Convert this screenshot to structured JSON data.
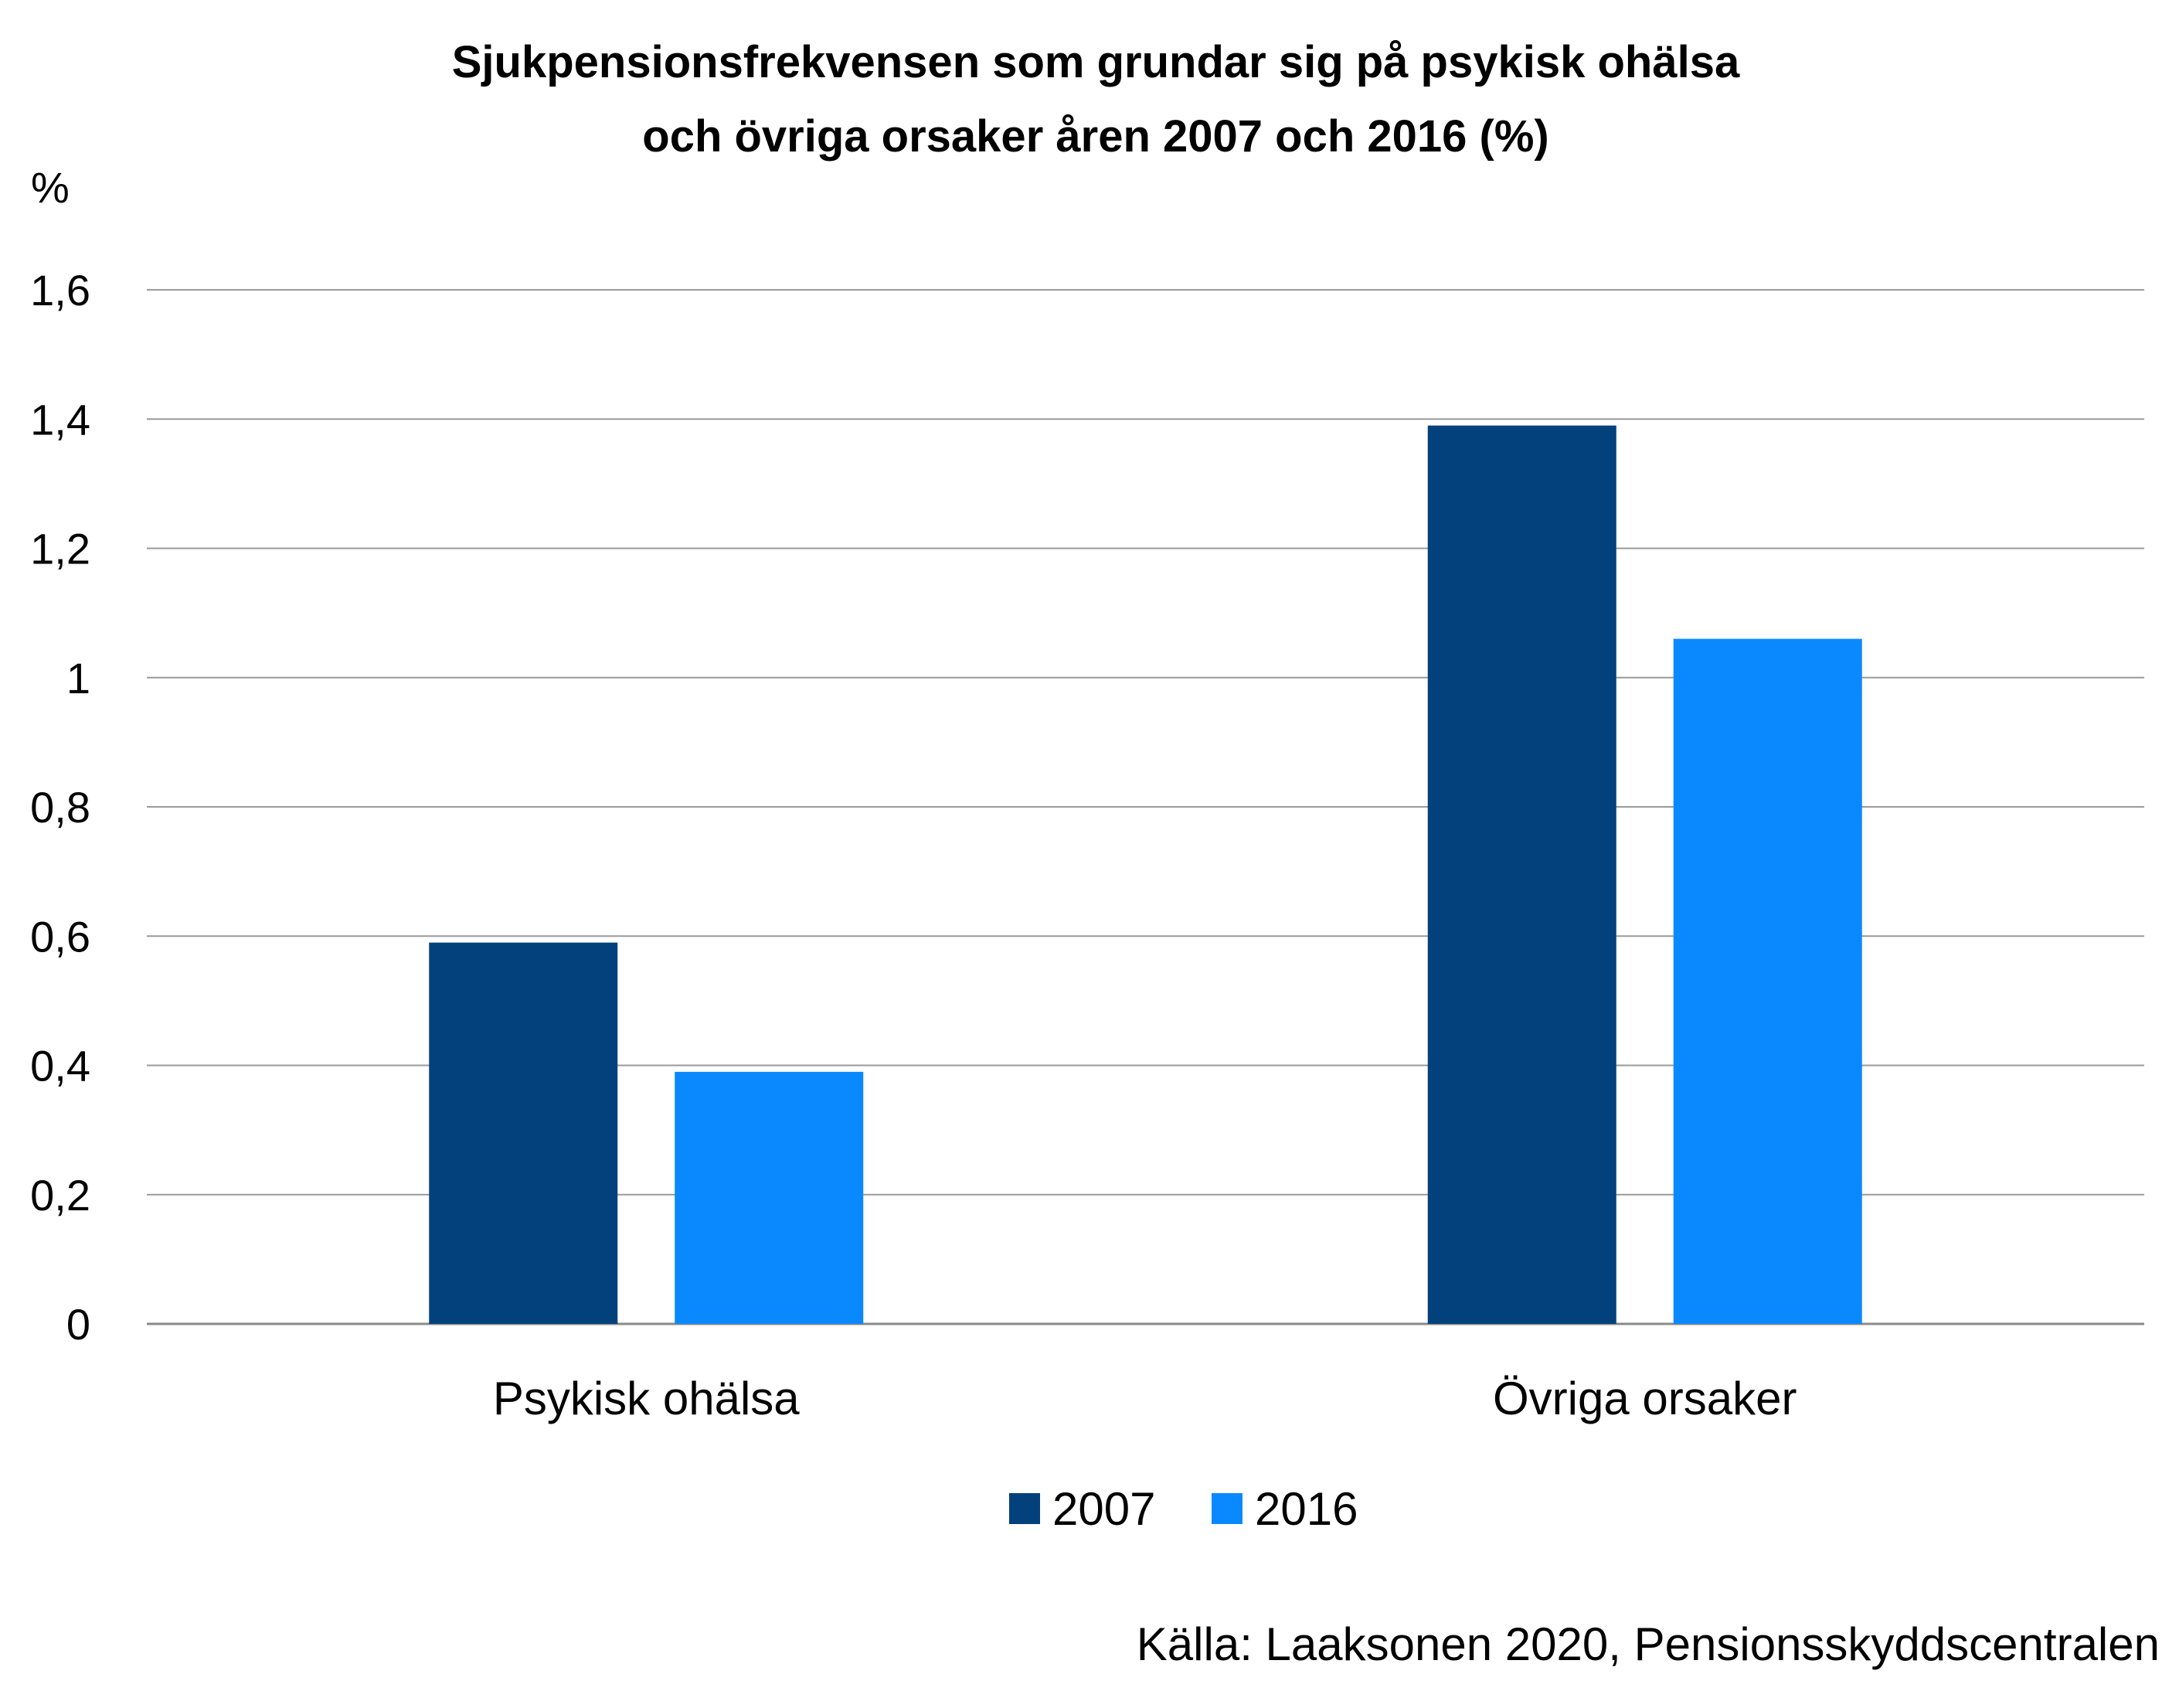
{
  "chart_data": {
    "type": "bar",
    "title_line1": "Sjukpensionsfrekvensen som grundar sig på psykisk ohälsa",
    "title_line2": "och övriga orsaker åren 2007 och 2016 (%)",
    "ylabel": "%",
    "xlabel": "",
    "ylim": [
      0,
      1.6
    ],
    "y_ticks": [
      0,
      0.2,
      0.4,
      0.6,
      0.8,
      1,
      1.2,
      1.4,
      1.6
    ],
    "y_tick_labels": [
      "0",
      "0,2",
      "0,4",
      "0,6",
      "0,8",
      "1",
      "1,2",
      "1,4",
      "1,6"
    ],
    "grid": true,
    "legend_position": "bottom",
    "categories": [
      "Psykisk ohälsa",
      "Övriga orsaker"
    ],
    "series": [
      {
        "name": "2007",
        "color": "#03417c",
        "values": [
          0.59,
          1.39
        ]
      },
      {
        "name": "2016",
        "color": "#0a89ff",
        "values": [
          0.39,
          1.06
        ]
      }
    ],
    "source": "Källa: Laaksonen 2020, Pensionsskyddscentralen"
  }
}
